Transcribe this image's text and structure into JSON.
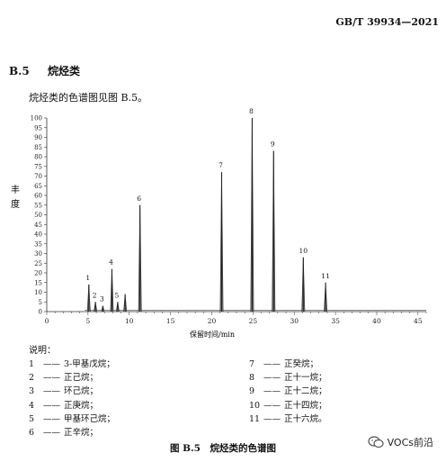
{
  "header": {
    "standard_code": "GB/T 39934—2021"
  },
  "section": {
    "number": "B.5",
    "title": "烷烃类",
    "intro": "烷烃类的色谱图见图 B.5。"
  },
  "chart_data": {
    "type": "line",
    "title": "",
    "xlabel": "保留时间/min",
    "ylabel": "丰度",
    "xlim": [
      0,
      46
    ],
    "ylim": [
      0,
      100
    ],
    "xticks": [
      0,
      5,
      10,
      15,
      20,
      25,
      30,
      35,
      40,
      45
    ],
    "yticks": [
      0,
      5,
      10,
      15,
      20,
      25,
      30,
      35,
      40,
      45,
      50,
      55,
      60,
      65,
      70,
      75,
      80,
      85,
      90,
      95,
      100
    ],
    "peaks": [
      {
        "label": "1",
        "x": 5.1,
        "y": 14
      },
      {
        "label": "2",
        "x": 5.9,
        "y": 5
      },
      {
        "label": "3",
        "x": 6.8,
        "y": 3
      },
      {
        "label": "4",
        "x": 7.9,
        "y": 22
      },
      {
        "label": "5",
        "x": 8.6,
        "y": 5
      },
      {
        "label": "",
        "x": 9.5,
        "y": 9
      },
      {
        "label": "6",
        "x": 11.3,
        "y": 55
      },
      {
        "label": "7",
        "x": 21.2,
        "y": 72
      },
      {
        "label": "8",
        "x": 24.9,
        "y": 100
      },
      {
        "label": "9",
        "x": 27.5,
        "y": 83
      },
      {
        "label": "10",
        "x": 31.1,
        "y": 28
      },
      {
        "label": "11",
        "x": 33.8,
        "y": 15
      }
    ]
  },
  "legend": {
    "heading": "说明：",
    "items": [
      {
        "num": "1",
        "name": "3-甲基戊烷；"
      },
      {
        "num": "2",
        "name": "正己烷；"
      },
      {
        "num": "3",
        "name": "环己烷；"
      },
      {
        "num": "4",
        "name": "正庚烷；"
      },
      {
        "num": "5",
        "name": "甲基环己烷；"
      },
      {
        "num": "6",
        "name": "正辛烷；"
      },
      {
        "num": "7",
        "name": "正癸烷；"
      },
      {
        "num": "8",
        "name": "正十一烷；"
      },
      {
        "num": "9",
        "name": "正十二烷；"
      },
      {
        "num": "10",
        "name": "正十四烷；"
      },
      {
        "num": "11",
        "name": "正十六烷。"
      }
    ],
    "dash": "——"
  },
  "figure": {
    "caption": "图 B.5　烷烃类的色谱图"
  },
  "watermark": {
    "text": "VOCs前沿",
    "icon": "wechat-icon"
  }
}
